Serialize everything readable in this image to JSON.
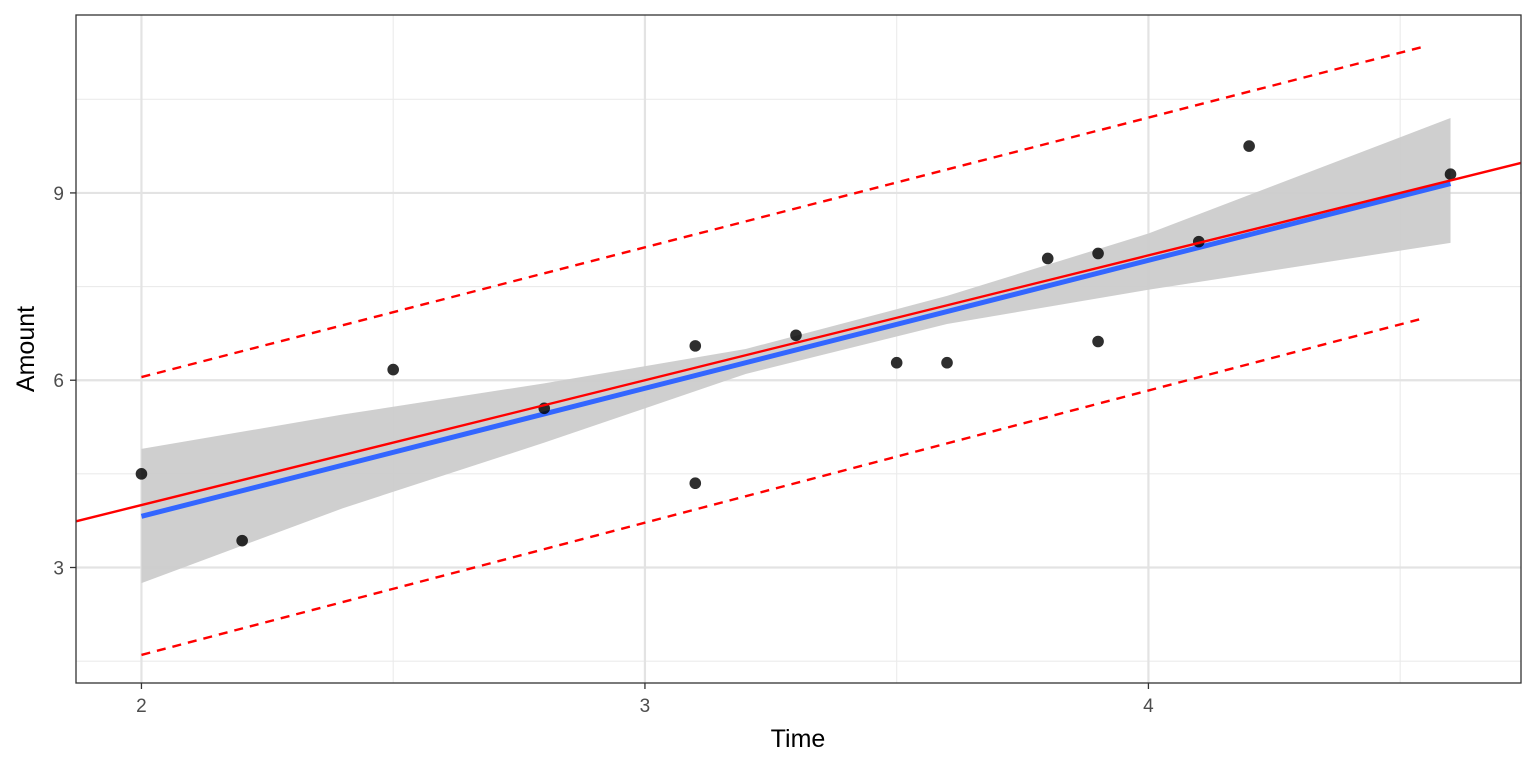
{
  "chart_data": {
    "type": "scatter",
    "title": "",
    "xlabel": "Time",
    "ylabel": "Amount",
    "xlim": [
      1.87,
      4.74
    ],
    "ylim": [
      1.15,
      11.85
    ],
    "x_ticks": [
      2,
      3,
      4
    ],
    "x_tick_labels": [
      "2",
      "3",
      "4"
    ],
    "x_minor_ticks": [
      2.5,
      3.5,
      4.5
    ],
    "y_ticks": [
      3,
      6,
      9
    ],
    "y_tick_labels": [
      "3",
      "6",
      "9"
    ],
    "y_minor_ticks": [
      1.5,
      4.5,
      7.5,
      10.5
    ],
    "grid": true,
    "points": [
      {
        "x": 2.0,
        "y": 4.5
      },
      {
        "x": 2.2,
        "y": 3.43
      },
      {
        "x": 2.5,
        "y": 6.17
      },
      {
        "x": 2.8,
        "y": 5.55
      },
      {
        "x": 3.1,
        "y": 6.55
      },
      {
        "x": 3.1,
        "y": 4.35
      },
      {
        "x": 3.3,
        "y": 6.72
      },
      {
        "x": 3.5,
        "y": 6.28
      },
      {
        "x": 3.6,
        "y": 6.28
      },
      {
        "x": 3.8,
        "y": 7.95
      },
      {
        "x": 3.9,
        "y": 8.03
      },
      {
        "x": 3.9,
        "y": 6.62
      },
      {
        "x": 4.1,
        "y": 8.22
      },
      {
        "x": 4.2,
        "y": 9.75
      },
      {
        "x": 4.6,
        "y": 9.3
      }
    ],
    "fit_line": {
      "x": [
        2.0,
        4.6
      ],
      "y": [
        3.82,
        9.15
      ],
      "color": "#3366FF"
    },
    "confidence_band": {
      "x": [
        2.0,
        2.4,
        2.8,
        3.2,
        3.6,
        4.0,
        4.6
      ],
      "lower": [
        2.75,
        3.95,
        5.0,
        6.1,
        6.9,
        7.45,
        8.2
      ],
      "upper": [
        4.9,
        5.45,
        5.95,
        6.5,
        7.35,
        8.35,
        10.2
      ],
      "color": "#cccccc"
    },
    "reference_line": {
      "x": [
        1.87,
        4.74
      ],
      "y": [
        3.74,
        9.48
      ],
      "color": "#ff0000"
    },
    "prediction_upper": {
      "x": [
        2.0,
        4.55
      ],
      "y": [
        6.05,
        11.35
      ],
      "color": "#ff0000"
    },
    "prediction_lower": {
      "x": [
        2.0,
        4.55
      ],
      "y": [
        1.6,
        7.0
      ],
      "color": "#ff0000"
    }
  }
}
